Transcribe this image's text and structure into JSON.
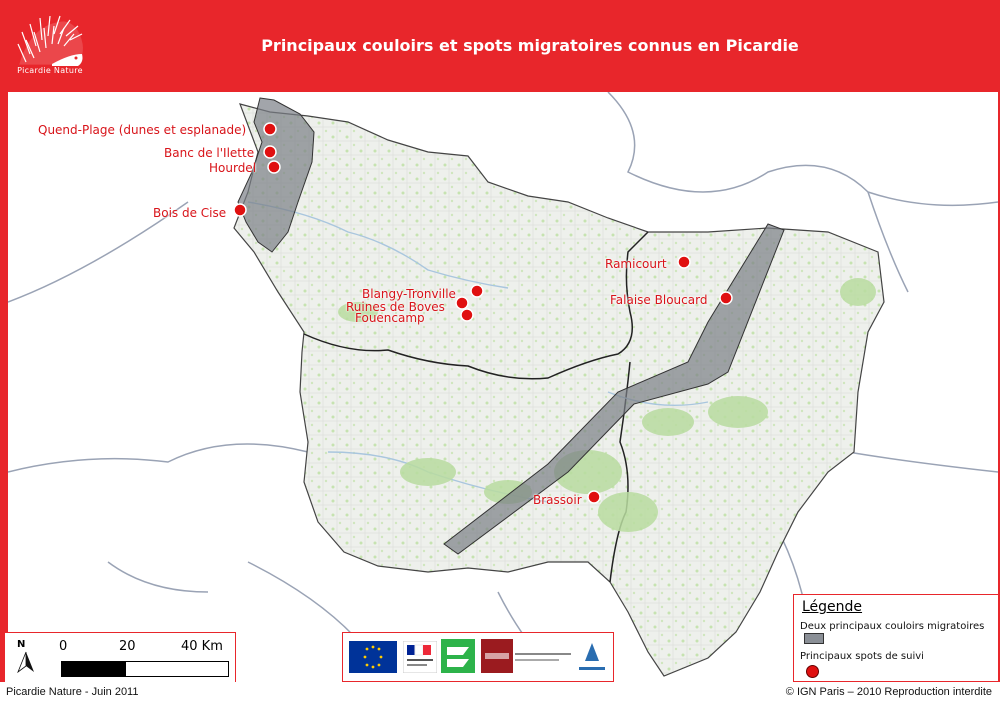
{
  "header": {
    "title": "Principaux couloirs et spots migratoires connus en Picardie",
    "logo_text": "Picardie Nature",
    "colors": {
      "brand_red": "#e8262b",
      "spot_red": "#e01010",
      "corridor_grey": "#7a7f86",
      "map_green": "#b9dca0"
    }
  },
  "spots": [
    {
      "label": "Quend-Plage (dunes et esplanade)"
    },
    {
      "label": "Banc de l'Ilette"
    },
    {
      "label": "Hourdel"
    },
    {
      "label": "Bois de Cise"
    },
    {
      "label": "Blangy-Tronville"
    },
    {
      "label": "Ruines de Boves"
    },
    {
      "label": "Fouencamp"
    },
    {
      "label": "Ramicourt"
    },
    {
      "label": "Falaise Bloucard"
    },
    {
      "label": "Brassoir"
    }
  ],
  "legend": {
    "title": "Légende",
    "corridors": "Deux principaux couloirs migratoires",
    "spots": "Principaux spots de suivi"
  },
  "scale": {
    "north": "N",
    "t0": "0",
    "t20": "20",
    "t40": "40 Km"
  },
  "logos": [
    "eu-flag-icon",
    "french-republic-icon",
    "picardie-region-icon",
    "somme-department-icon",
    "aisne-department-icon"
  ],
  "footer": {
    "left": "Picardie Nature - Juin 2011",
    "right": "© IGN Paris – 2010 Reproduction interdite"
  }
}
